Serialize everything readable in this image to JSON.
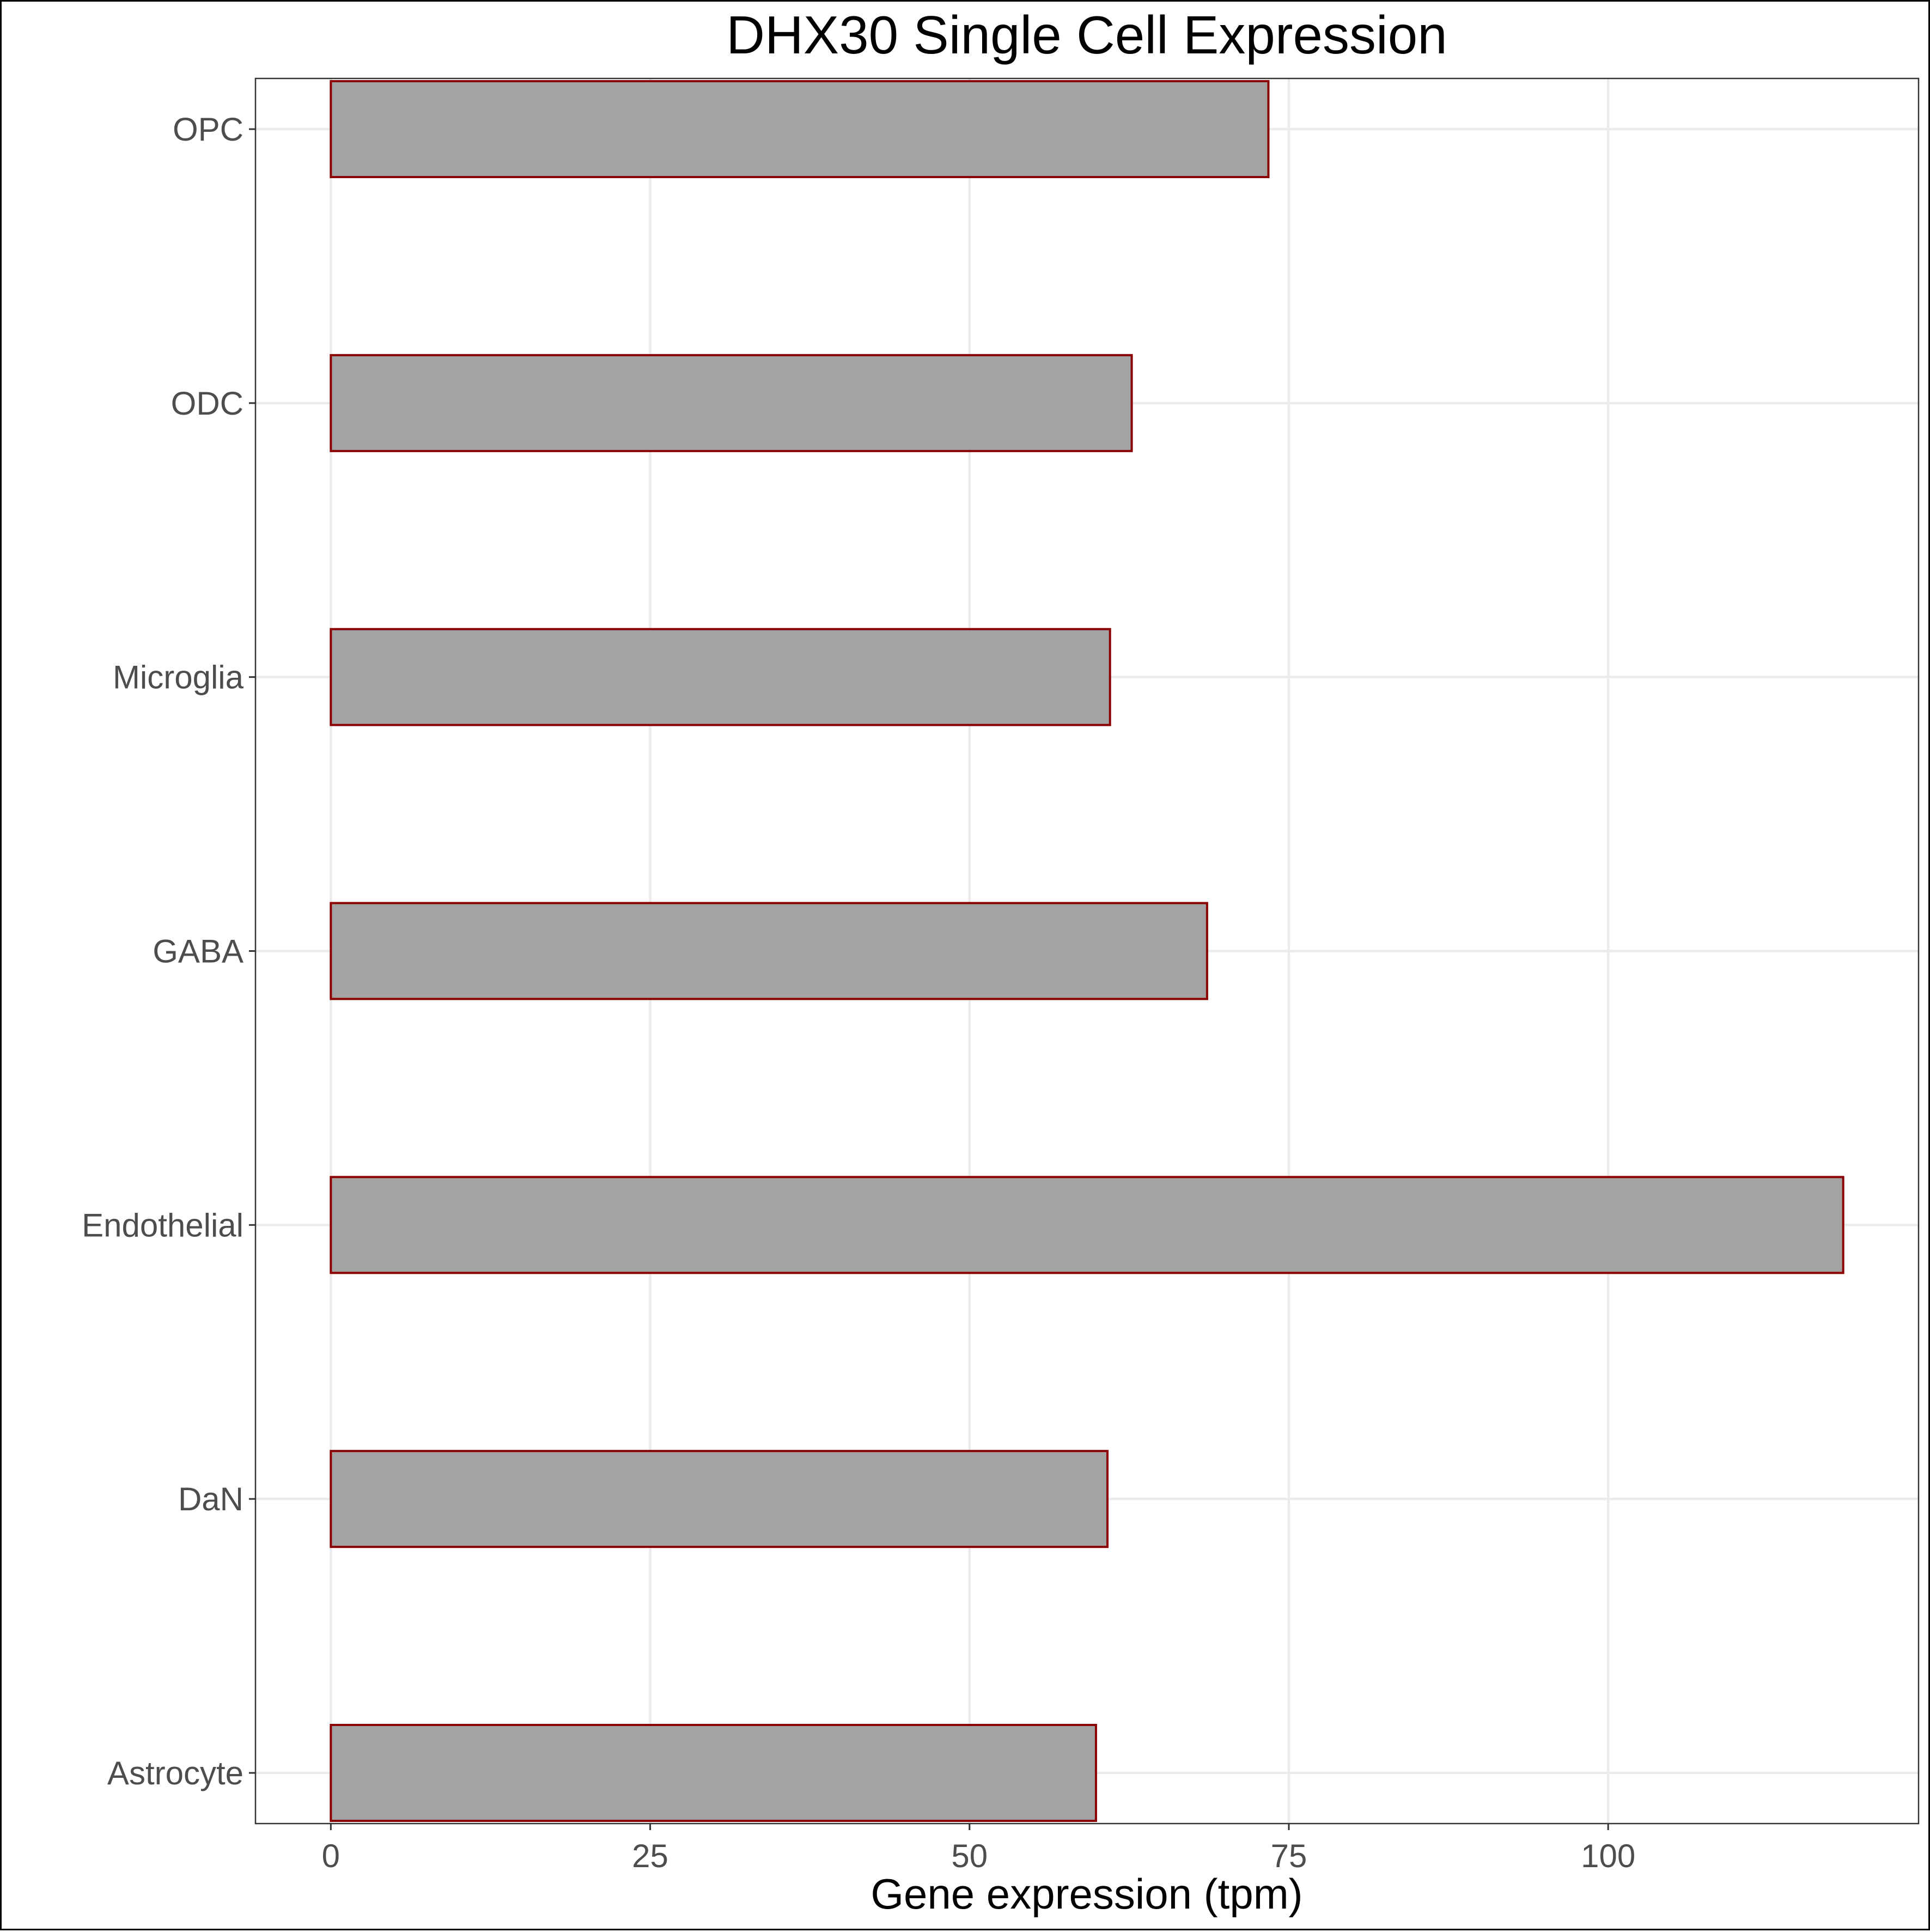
{
  "chart_data": {
    "type": "bar",
    "orientation": "horizontal",
    "title": "DHX30 Single Cell Expression",
    "xlabel": "Gene expression (tpm)",
    "ylabel": "",
    "categories": [
      "Astrocyte",
      "DaN",
      "Endothelial",
      "GABA",
      "Microglia",
      "ODC",
      "OPC"
    ],
    "values": [
      59.9,
      60.8,
      118.4,
      68.6,
      61.0,
      62.7,
      73.4
    ],
    "xlim": [
      -5.9,
      124.3
    ],
    "xticks": [
      0,
      25,
      50,
      75,
      100
    ],
    "grid": true,
    "legend": "none",
    "colors": {
      "bar_fill": "#a3a3a3",
      "bar_outline": "#8b0000",
      "grid": "#ebebeb",
      "tick_text": "#4d4d4d"
    }
  }
}
